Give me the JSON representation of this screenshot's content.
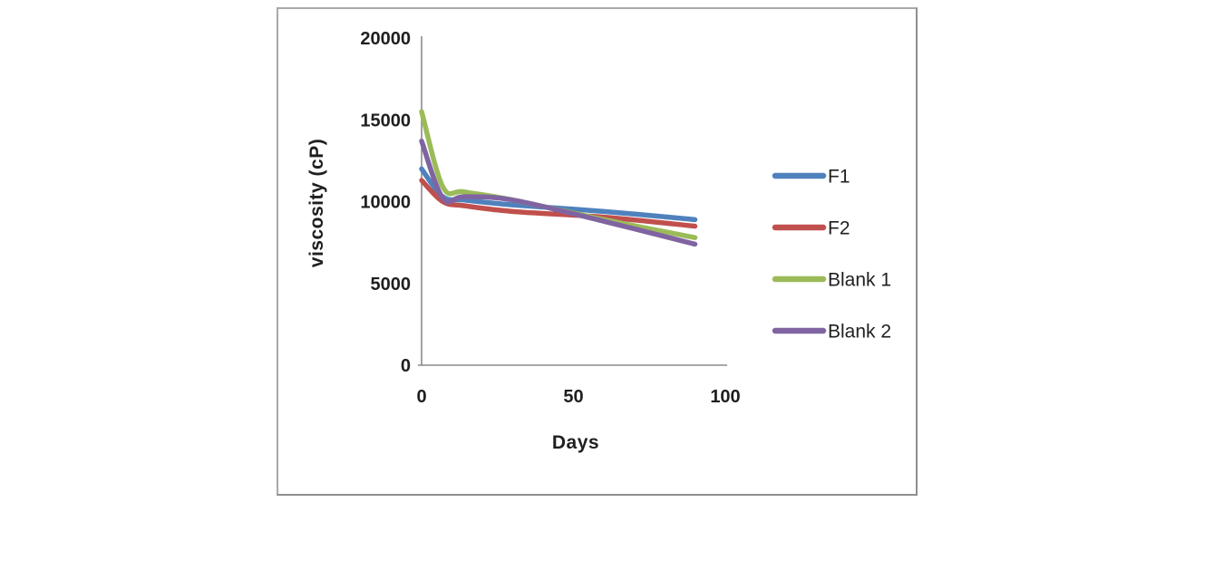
{
  "chart_data": {
    "type": "line",
    "title": "",
    "xlabel": "Days",
    "ylabel": "viscosity (cP)",
    "x": [
      0,
      7,
      14,
      30,
      60,
      90
    ],
    "series": [
      {
        "name": "F1",
        "color": "#4F81BD",
        "values": [
          12000,
          10300,
          10100,
          9800,
          9400,
          8900
        ]
      },
      {
        "name": "F2",
        "color": "#C0504D",
        "values": [
          11300,
          10000,
          9750,
          9400,
          9050,
          8500
        ]
      },
      {
        "name": "Blank 1",
        "color": "#9BBB59",
        "values": [
          15500,
          10900,
          10600,
          10100,
          8900,
          7800
        ]
      },
      {
        "name": "Blank 2",
        "color": "#8064A2",
        "values": [
          13700,
          10200,
          10300,
          10100,
          8800,
          7400
        ]
      }
    ],
    "xlim": [
      0,
      100
    ],
    "ylim": [
      0,
      20000
    ],
    "xticks": [
      0,
      50,
      100
    ],
    "yticks": [
      0,
      5000,
      10000,
      15000,
      20000
    ],
    "grid": false,
    "legend_position": "right",
    "smoothed_lines": true
  },
  "colors": {
    "axis_line": "#8c8c8c",
    "text": "#1f1f1f",
    "frame_border": "#a8a8a8",
    "background": "#ffffff"
  }
}
